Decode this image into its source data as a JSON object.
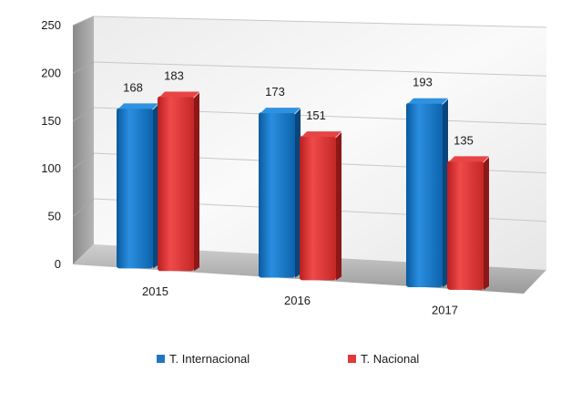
{
  "chart_data": {
    "type": "bar",
    "title": "",
    "xlabel": "",
    "ylabel": "",
    "categories": [
      "2015",
      "2016",
      "2017"
    ],
    "series": [
      {
        "name": "T. Internacional",
        "values": [
          168,
          173,
          193
        ],
        "color": "#1f77c4"
      },
      {
        "name": "T. Nacional",
        "values": [
          183,
          151,
          135
        ],
        "color": "#e03a3a"
      }
    ],
    "ylim": [
      0,
      250
    ],
    "yticks": [
      0,
      50,
      100,
      150,
      200,
      250
    ],
    "grid": true,
    "style": "3d",
    "legend_position": "bottom"
  }
}
